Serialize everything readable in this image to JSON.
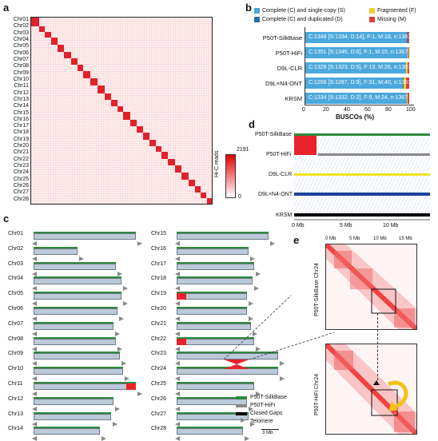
{
  "panel_labels": {
    "a": "a",
    "b": "b",
    "c": "c",
    "d": "d",
    "e": "e"
  },
  "panel_a": {
    "chromosomes": [
      "Chr01",
      "Chr02",
      "Chr03",
      "Chr04",
      "Chr05",
      "Chr06",
      "Chr07",
      "Chr08",
      "Chr09",
      "Chr10",
      "Chr11",
      "Chr12",
      "Chr13",
      "Chr14",
      "Chr15",
      "Chr16",
      "Chr17",
      "Chr18",
      "Chr19",
      "Chr20",
      "Chr21",
      "Chr22",
      "Chr23",
      "Chr24",
      "Chr25",
      "Chr26",
      "Chr27",
      "Chr28"
    ],
    "colorbar_max": "2191",
    "colorbar_min": "0",
    "colorbar_label": "Hi-C reads"
  },
  "panel_b": {
    "legend": [
      {
        "label": "Complete (C) and single-copy (S)",
        "color": "#4aa8dc"
      },
      {
        "label": "Complete (C) and duplicated (D)",
        "color": "#2e6fa3"
      },
      {
        "label": "Fragmented (F)",
        "color": "#f2cd2e"
      },
      {
        "label": "Missing (M)",
        "color": "#d7403b"
      }
    ],
    "chart_data": {
      "type": "bar",
      "categories": [
        "P50T-SilkBase",
        "P50T-HiFi",
        "D9L-CLR",
        "D9L×N4-ONT",
        "KRSM"
      ],
      "series": [
        {
          "name": "Complete (C) and single-copy (S)",
          "values": [
            1334,
            1345,
            1323,
            1287,
            1332
          ]
        },
        {
          "name": "Complete (C) and duplicated (D)",
          "values": [
            14,
            6,
            5,
            9,
            2
          ]
        },
        {
          "name": "Fragmented (F)",
          "values": [
            1,
            1,
            13,
            31,
            9
          ]
        },
        {
          "name": "Missing (M)",
          "values": [
            18,
            15,
            26,
            40,
            24
          ]
        }
      ],
      "xlabel": "BUSCOs (%)",
      "xlim": [
        0,
        100
      ],
      "ticks": [
        "0",
        "20",
        "40",
        "60",
        "80",
        "100"
      ]
    },
    "row_texts": [
      "C:1348 [S:1334, D:14], F:1, M:18, n:1367",
      "C:1351 [S:1345, D:6], F:1, M:15, n:1367",
      "C:1328 [S:1323, D:5], F:13, M:26, n:1367",
      "C:1296 [S:1287, D:9], F:31, M:40, n:1367",
      "C:1334 [S:1332, D:2], F:9, M:24, n:1367"
    ]
  },
  "panel_c": {
    "left": [
      "Chr01",
      "Chr02",
      "Chr03",
      "Chr04",
      "Chr05",
      "Chr06",
      "Chr07",
      "Chr08",
      "Chr09",
      "Chr10",
      "Chr11",
      "Chr12",
      "Chr13",
      "Chr14"
    ],
    "right": [
      "Chr15",
      "Chr16",
      "Chr17",
      "Chr18",
      "Chr19",
      "Chr20",
      "Chr21",
      "Chr22",
      "Chr23",
      "Chr24",
      "Chr25",
      "Chr26",
      "Chr27",
      "Chr28"
    ],
    "legend": [
      "P50T-SilkBase",
      "P50T-HiFi",
      "Closed Gaps",
      "Telomere"
    ],
    "scale": "3 Mb"
  },
  "panel_d": {
    "tracks": [
      "P50T-SilkBase",
      "P50T-HiFi",
      "D9L-CLR",
      "D9L×N4-ONT",
      "KRSM"
    ],
    "axis": [
      "0 Mb",
      "5 Mb",
      "10 Mb"
    ]
  },
  "panel_e": {
    "axis": [
      "0 Mb",
      "5 Mb",
      "10 Mb",
      "15 Mb"
    ],
    "top_label": "P50T-SilkBase Chr24",
    "bottom_label": "P50T-HiFi Chr24"
  }
}
